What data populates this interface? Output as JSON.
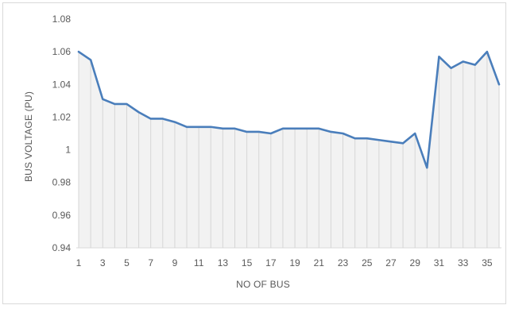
{
  "chart_data": {
    "type": "line",
    "title": "",
    "xlabel": "NO OF BUS",
    "ylabel": "BUS VOLTAGE (PU)",
    "ylim": [
      0.94,
      1.08
    ],
    "ytick_labels": [
      "0.94",
      "0.96",
      "0.98",
      "1",
      "1.02",
      "1.04",
      "1.06",
      "1.08"
    ],
    "yticks": [
      0.94,
      0.96,
      0.98,
      1.0,
      1.02,
      1.04,
      1.06,
      1.08
    ],
    "x": [
      1,
      2,
      3,
      4,
      5,
      6,
      7,
      8,
      9,
      10,
      11,
      12,
      13,
      14,
      15,
      16,
      17,
      18,
      19,
      20,
      21,
      22,
      23,
      24,
      25,
      26,
      27,
      28,
      29,
      30,
      31,
      32,
      33,
      34,
      35,
      36
    ],
    "xtick_labels": [
      "1",
      "3",
      "5",
      "7",
      "9",
      "11",
      "13",
      "15",
      "17",
      "19",
      "21",
      "23",
      "25",
      "27",
      "29",
      "31",
      "33",
      "35"
    ],
    "series": [
      {
        "values": [
          1.06,
          1.055,
          1.031,
          1.028,
          1.028,
          1.023,
          1.019,
          1.019,
          1.017,
          1.014,
          1.014,
          1.014,
          1.013,
          1.013,
          1.011,
          1.011,
          1.01,
          1.013,
          1.013,
          1.013,
          1.013,
          1.011,
          1.01,
          1.007,
          1.007,
          1.006,
          1.005,
          1.004,
          1.01,
          0.989,
          1.057,
          1.05,
          1.054,
          1.052,
          1.06,
          1.04
        ]
      }
    ],
    "grid": "vertical drop lines",
    "line_color": "#4a7ebb",
    "area_color": "#f2f2f2"
  }
}
